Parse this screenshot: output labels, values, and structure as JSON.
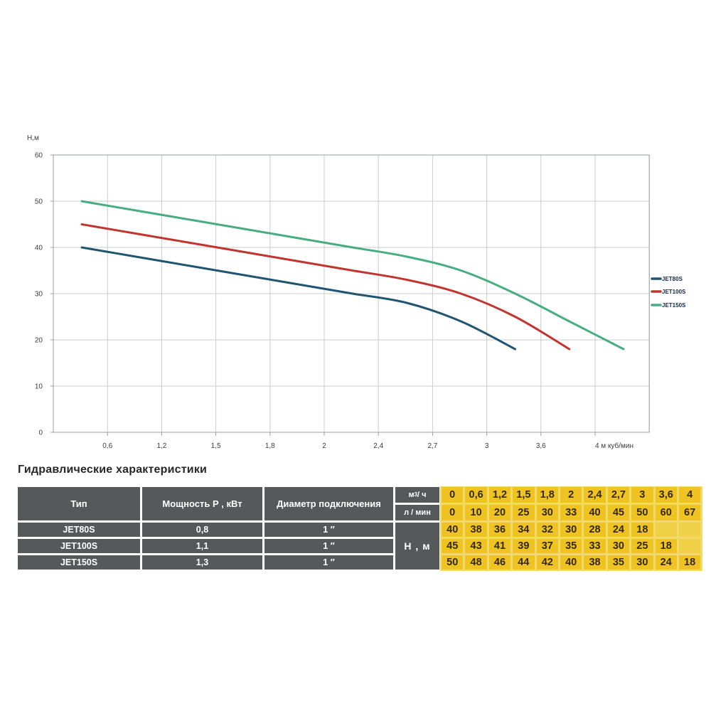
{
  "chart": {
    "y_axis_title": "Н,м",
    "y_ticks": [
      60,
      50,
      40,
      30,
      20,
      10,
      0
    ],
    "x_tick_labels": [
      "0,6",
      "1,2",
      "1,5",
      "1,8",
      "2",
      "2,4",
      "2,7",
      "3",
      "3,6",
      "4 м куб/мин"
    ],
    "colors": {
      "grid": "#c9cccb",
      "border": "#9aa0a0",
      "tick_text": "#3c3c3c",
      "legend_text": "#16294d"
    }
  },
  "chart_data": {
    "type": "line",
    "title": "",
    "xlabel": "м куб/мин",
    "ylabel": "Н,м",
    "x": [
      0,
      0.6,
      1.2,
      1.5,
      1.8,
      2,
      2.4,
      2.7,
      3,
      3.6,
      4
    ],
    "ylim": [
      0,
      60
    ],
    "grid": true,
    "legend_position": "right",
    "series": [
      {
        "name": "JET80S",
        "color": "#205571",
        "values": [
          40,
          38,
          36,
          34,
          32,
          30,
          28,
          24,
          18
        ]
      },
      {
        "name": "JET100S",
        "color": "#c2342e",
        "values": [
          45,
          43,
          41,
          39,
          37,
          35,
          33,
          30,
          25,
          18
        ]
      },
      {
        "name": "JET150S",
        "color": "#46ae81",
        "values": [
          50,
          48,
          46,
          44,
          42,
          40,
          38,
          35,
          30,
          24,
          18
        ]
      }
    ]
  },
  "table": {
    "title": "Гидравлические характеристики",
    "col_headers": [
      "Тип",
      "Мощность Р , кВт",
      "Диаметр подключения"
    ],
    "flow_unit": {
      "pre": "м",
      "sup": "3",
      "post": " / ч"
    },
    "flow_unit_lmin": "л / мин",
    "head_unit": "Н , м",
    "flow_m3h": [
      "0",
      "0,6",
      "1,2",
      "1,5",
      "1,8",
      "2",
      "2,4",
      "2,7",
      "3",
      "3,6",
      "4"
    ],
    "flow_lmin": [
      "0",
      "10",
      "20",
      "25",
      "30",
      "33",
      "40",
      "45",
      "50",
      "60",
      "67"
    ],
    "rows": [
      {
        "type": "JET80S",
        "power": "0,8",
        "diameter": "1 ″",
        "heads": [
          "40",
          "38",
          "36",
          "34",
          "32",
          "30",
          "28",
          "24",
          "18",
          "",
          ""
        ]
      },
      {
        "type": "JET100S",
        "power": "1,1",
        "diameter": "1 ″",
        "heads": [
          "45",
          "43",
          "41",
          "39",
          "37",
          "35",
          "33",
          "30",
          "25",
          "18",
          ""
        ]
      },
      {
        "type": "JET150S",
        "power": "1,3",
        "diameter": "1 ″",
        "heads": [
          "50",
          "48",
          "46",
          "44",
          "42",
          "40",
          "38",
          "35",
          "30",
          "24",
          "18"
        ]
      }
    ]
  }
}
